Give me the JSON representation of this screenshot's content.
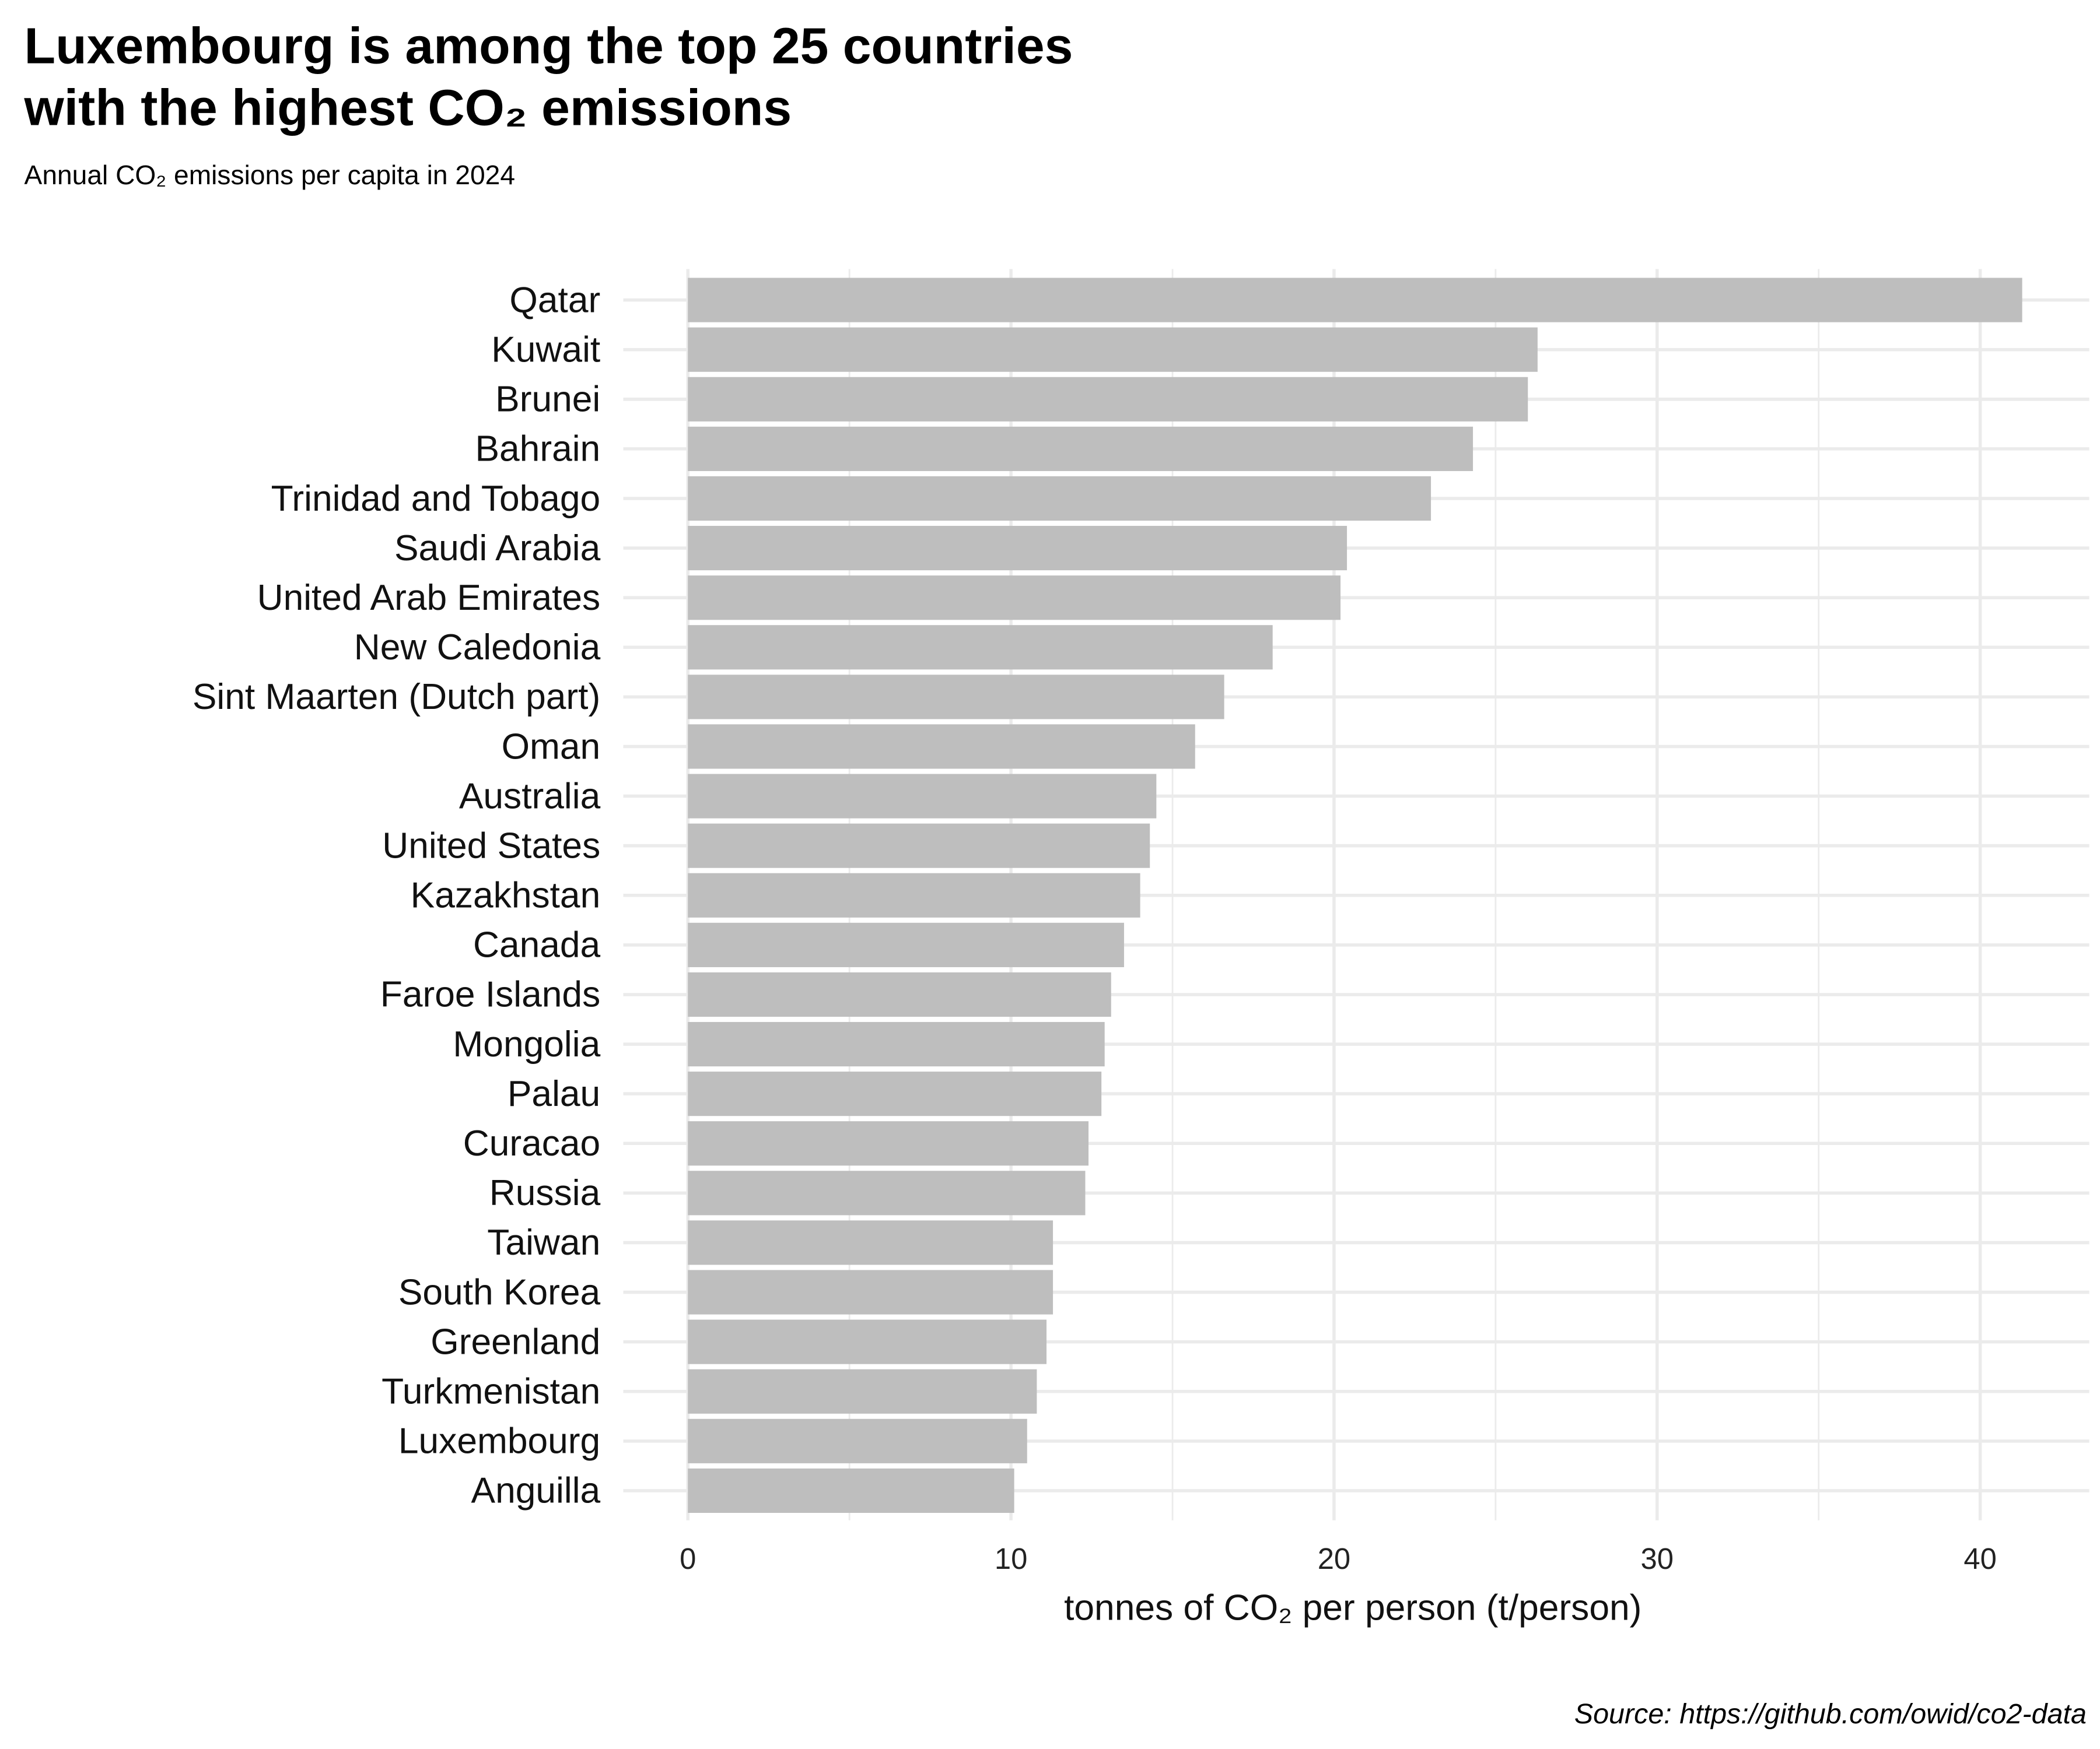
{
  "header": {
    "title_line1": "Luxembourg is among the top 25 countries",
    "title_line2": "with the highest CO₂ emissions",
    "subtitle": "Annual CO₂ emissions per capita in 2024"
  },
  "source": "Source: https://github.com/owid/co2-data",
  "colors": {
    "bar": "#bebebe",
    "grid": "#ebebeb"
  },
  "chart_data": {
    "type": "bar",
    "orientation": "horizontal",
    "title": "Luxembourg is among the top 25 countries with the highest CO₂ emissions",
    "subtitle": "Annual CO₂ emissions per capita in 2024",
    "xlabel": "tonnes of  CO₂ per person (t/person)",
    "ylabel": "",
    "xlim": [
      0,
      43
    ],
    "xticks": [
      "0",
      "10",
      "20",
      "30",
      "40"
    ],
    "grid": true,
    "categories": [
      "Qatar",
      "Kuwait",
      "Brunei",
      "Bahrain",
      "Trinidad and Tobago",
      "Saudi Arabia",
      "United Arab Emirates",
      "New Caledonia",
      "Sint Maarten (Dutch part)",
      "Oman",
      "Australia",
      "United States",
      "Kazakhstan",
      "Canada",
      "Faroe Islands",
      "Mongolia",
      "Palau",
      "Curacao",
      "Russia",
      "Taiwan",
      "South Korea",
      "Greenland",
      "Turkmenistan",
      "Luxembourg",
      "Anguilla"
    ],
    "values": [
      41.3,
      26.3,
      26.0,
      24.3,
      23.0,
      20.4,
      20.2,
      18.1,
      16.6,
      15.7,
      14.5,
      14.3,
      14.0,
      13.5,
      13.1,
      12.9,
      12.8,
      12.4,
      12.3,
      11.3,
      11.3,
      11.1,
      10.8,
      10.5,
      10.1
    ]
  }
}
